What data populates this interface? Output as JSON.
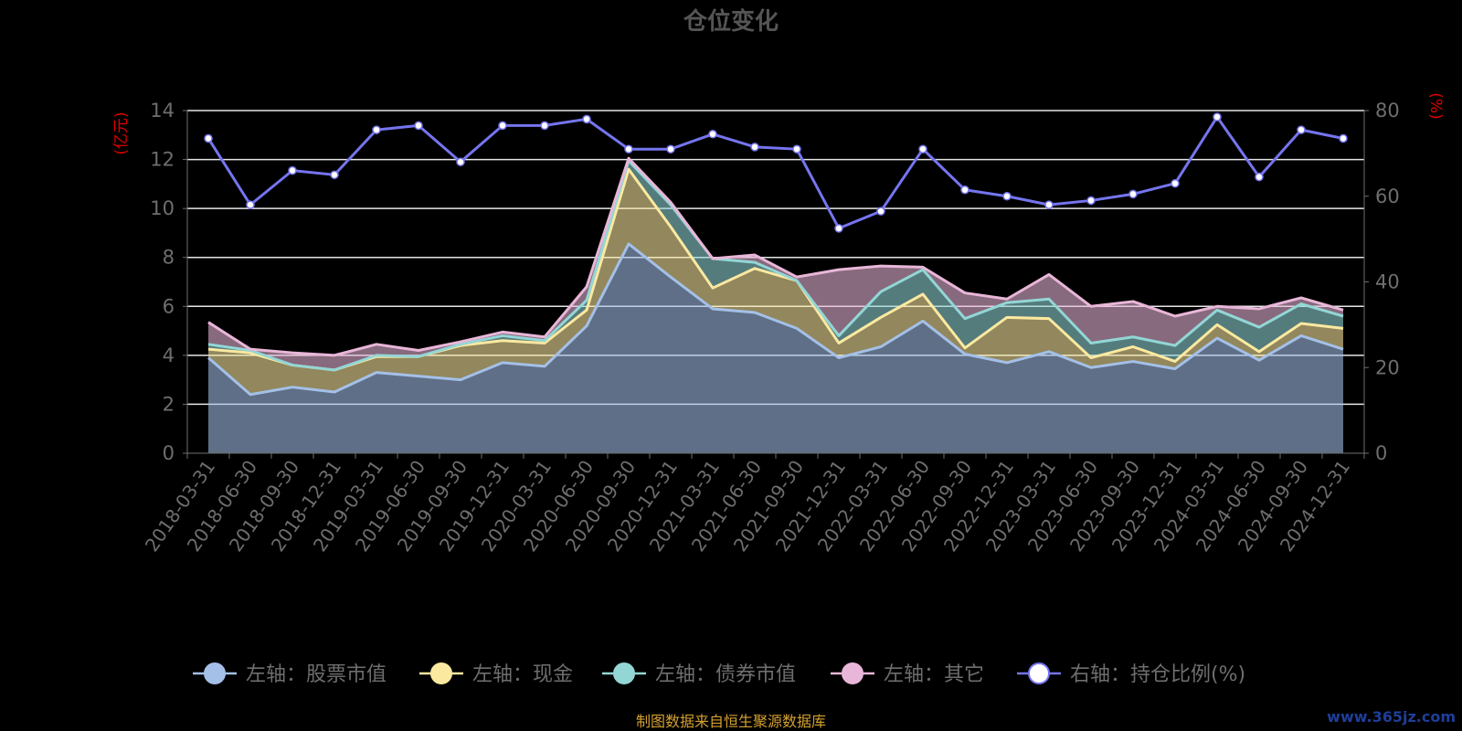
{
  "colors": {
    "stock": "#a4c0e8",
    "cash": "#fbe9a0",
    "bond": "#93d6d6",
    "other": "#e8b6d8",
    "ratio": "#7575f0",
    "unit": "#e00000",
    "footer": "#d4a030"
  },
  "footer_text": "制图数据来自恒生聚源数据库",
  "watermark_text": "www.365jz.com",
  "chart_data": {
    "type": "area",
    "title": "仓位变化",
    "ylabel_left": "(亿元)",
    "ylabel_right": "(%)",
    "ylim_left": [
      0,
      14
    ],
    "ylim_right": [
      0,
      80
    ],
    "yticks_left": [
      "0",
      "2",
      "4",
      "6",
      "8",
      "10",
      "12",
      "14"
    ],
    "yticks_right": [
      "0",
      "20",
      "40",
      "60",
      "80"
    ],
    "stacked": true,
    "grid": true,
    "legend_position": "bottom",
    "categories": [
      "2018-03-31",
      "2018-06-30",
      "2018-09-30",
      "2018-12-31",
      "2019-03-31",
      "2019-06-30",
      "2019-09-30",
      "2019-12-31",
      "2020-03-31",
      "2020-06-30",
      "2020-09-30",
      "2020-12-31",
      "2021-03-31",
      "2021-06-30",
      "2021-09-30",
      "2021-12-31",
      "2022-03-31",
      "2022-06-30",
      "2022-09-30",
      "2022-12-31",
      "2023-03-31",
      "2023-06-30",
      "2023-09-30",
      "2023-12-31",
      "2024-03-31",
      "2024-06-30",
      "2024-09-30",
      "2024-12-31"
    ],
    "series": [
      {
        "name": "左轴：股票市值",
        "axis": "left",
        "color": "#a4c0e8",
        "values": [
          3.9,
          2.4,
          2.7,
          2.5,
          3.3,
          3.15,
          3.0,
          3.7,
          3.55,
          5.2,
          8.55,
          7.2,
          5.9,
          5.75,
          5.1,
          3.9,
          4.35,
          5.4,
          4.05,
          3.7,
          4.15,
          3.5,
          3.75,
          3.45,
          4.7,
          3.8,
          4.8,
          4.25
        ]
      },
      {
        "name": "左轴：现金",
        "axis": "left",
        "color": "#fbe9a0",
        "values": [
          0.35,
          1.7,
          0.9,
          0.9,
          0.65,
          0.8,
          1.4,
          0.9,
          0.95,
          0.65,
          3.05,
          2.05,
          0.85,
          1.8,
          1.95,
          0.6,
          1.2,
          1.1,
          0.25,
          1.85,
          1.35,
          0.4,
          0.6,
          0.3,
          0.55,
          0.35,
          0.5,
          0.85
        ]
      },
      {
        "name": "左轴：债券市值",
        "axis": "left",
        "color": "#93d6d6",
        "values": [
          0.2,
          0.1,
          0.0,
          0.0,
          0.05,
          0.0,
          0.05,
          0.2,
          0.1,
          0.4,
          0.35,
          0.9,
          1.2,
          0.25,
          0.0,
          0.3,
          1.05,
          1.0,
          1.2,
          0.6,
          0.8,
          0.6,
          0.4,
          0.65,
          0.6,
          1.0,
          0.8,
          0.5
        ]
      },
      {
        "name": "左轴：其它",
        "axis": "left",
        "color": "#e8b6d8",
        "values": [
          0.9,
          0.05,
          0.5,
          0.6,
          0.45,
          0.25,
          0.1,
          0.15,
          0.15,
          0.55,
          0.1,
          0.1,
          0.0,
          0.3,
          0.15,
          2.7,
          1.05,
          0.1,
          1.05,
          0.15,
          1.0,
          1.5,
          1.45,
          1.2,
          0.15,
          0.75,
          0.25,
          0.25
        ]
      },
      {
        "name": "右轴：持仓比例(%)",
        "axis": "right",
        "color": "#7575f0",
        "values": [
          73.5,
          58,
          66,
          65,
          75.5,
          76.5,
          68,
          76.5,
          76.5,
          78,
          71,
          71,
          74.5,
          71.5,
          71,
          52.5,
          56.5,
          71,
          61.5,
          60,
          58,
          59,
          60.5,
          63,
          78.5,
          64.5,
          75.5,
          73.5
        ]
      }
    ]
  }
}
